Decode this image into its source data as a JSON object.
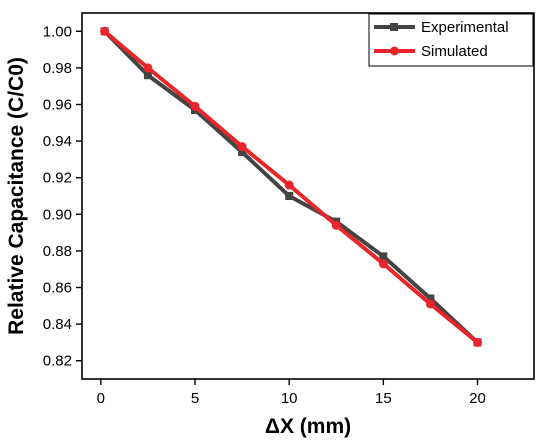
{
  "chart_data": {
    "type": "line",
    "title": "",
    "xlabel": "ΔX (mm)",
    "ylabel": "Relative Capacitance (C/C0)",
    "xlim": [
      -1,
      23
    ],
    "ylim": [
      0.81,
      1.01
    ],
    "x_ticks": [
      0,
      5,
      10,
      15,
      20
    ],
    "y_ticks": [
      0.82,
      0.84,
      0.86,
      0.88,
      0.9,
      0.92,
      0.94,
      0.96,
      0.98,
      1.0
    ],
    "x_tick_labels": [
      "0",
      "5",
      "10",
      "15",
      "20"
    ],
    "y_tick_labels": [
      "0.82",
      "0.84",
      "0.86",
      "0.88",
      "0.90",
      "0.92",
      "0.94",
      "0.96",
      "0.98",
      "1.00"
    ],
    "grid": false,
    "legend_position": "top-right",
    "series": [
      {
        "name": "Experimental",
        "color": "#444444",
        "marker": "square",
        "x": [
          0.2,
          2.5,
          5,
          7.5,
          10,
          12.5,
          15,
          17.5,
          20
        ],
        "y": [
          1.0,
          0.976,
          0.957,
          0.934,
          0.91,
          0.896,
          0.877,
          0.854,
          0.83
        ]
      },
      {
        "name": "Simulated",
        "color": "#e8262b",
        "marker": "circle",
        "x": [
          0.2,
          2.5,
          5,
          7.5,
          10,
          12.5,
          15,
          17.5,
          20
        ],
        "y": [
          1.0,
          0.98,
          0.959,
          0.937,
          0.916,
          0.894,
          0.873,
          0.851,
          0.83
        ]
      }
    ]
  }
}
